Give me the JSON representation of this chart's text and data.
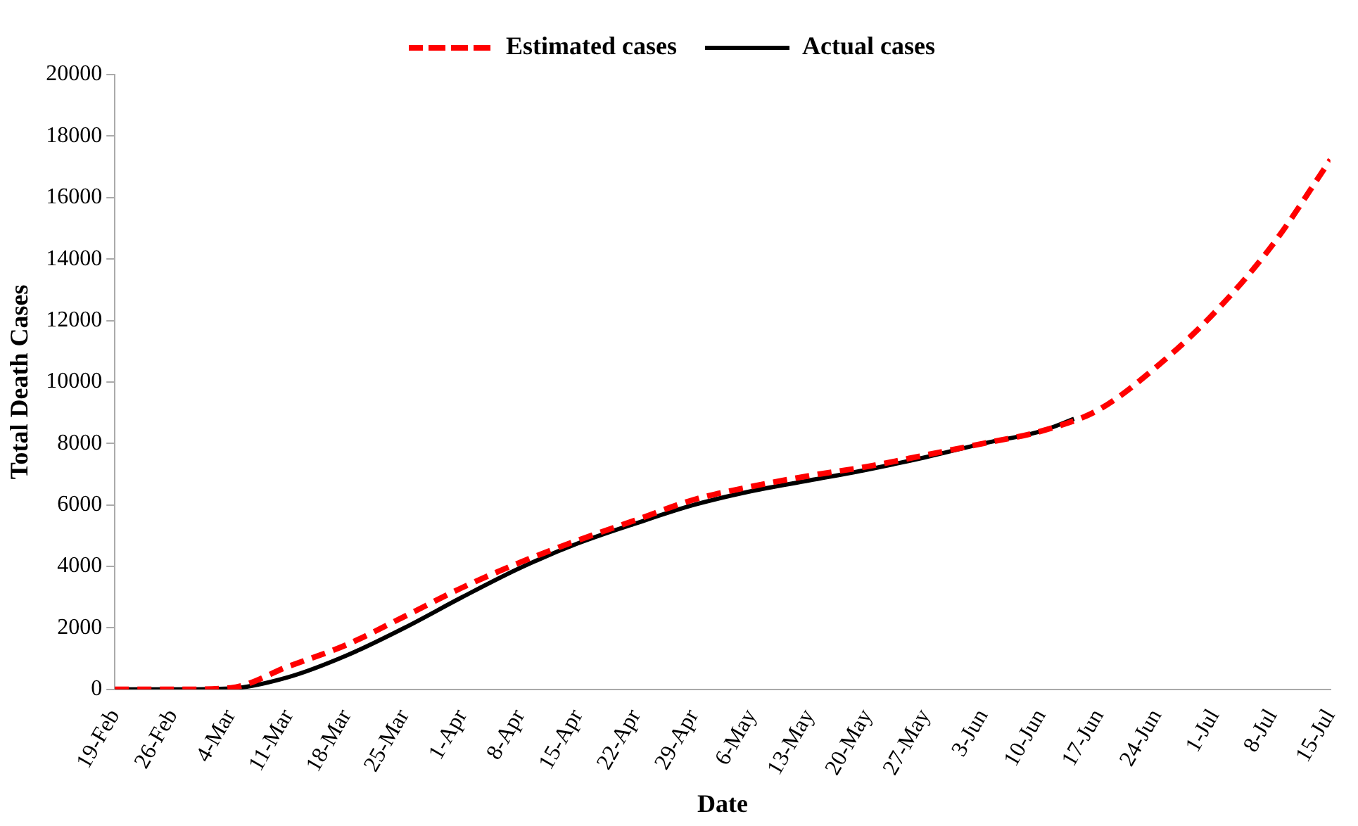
{
  "chart_data": {
    "type": "line",
    "xlabel": "Date",
    "ylabel": "Total Death Cases",
    "legend": "top",
    "marker": "none",
    "grid": false,
    "xlim": [
      "--02-19",
      "--07-15"
    ],
    "xticks": [
      {
        "value": "--02-19",
        "label": "19-Feb"
      },
      {
        "value": "--02-26",
        "label": "26-Feb"
      },
      {
        "value": "--03-04",
        "label": "4-Mar"
      },
      {
        "value": "--03-11",
        "label": "11-Mar"
      },
      {
        "value": "--03-18",
        "label": "18-Mar"
      },
      {
        "value": "--03-25",
        "label": "25-Mar"
      },
      {
        "value": "--04-01",
        "label": "1-Apr"
      },
      {
        "value": "--04-08",
        "label": "8-Apr"
      },
      {
        "value": "--04-15",
        "label": "15-Apr"
      },
      {
        "value": "--04-22",
        "label": "22-Apr"
      },
      {
        "value": "--04-29",
        "label": "29-Apr"
      },
      {
        "value": "--05-06",
        "label": "6-May"
      },
      {
        "value": "--05-13",
        "label": "13-May"
      },
      {
        "value": "--05-20",
        "label": "20-May"
      },
      {
        "value": "--05-27",
        "label": "27-May"
      },
      {
        "value": "--06-03",
        "label": "3-Jun"
      },
      {
        "value": "--06-10",
        "label": "10-Jun"
      },
      {
        "value": "--06-17",
        "label": "17-Jun"
      },
      {
        "value": "--06-24",
        "label": "24-Jun"
      },
      {
        "value": "--07-01",
        "label": "1-Jul"
      },
      {
        "value": "--07-08",
        "label": "8-Jul"
      },
      {
        "value": "--07-15",
        "label": "15-Jul"
      }
    ],
    "ylim": [
      0,
      20000
    ],
    "yticks": [
      0,
      2000,
      4000,
      6000,
      8000,
      10000,
      12000,
      14000,
      16000,
      18000,
      20000
    ],
    "series": [
      {
        "name": "Estimated cases",
        "color": "#ff0000",
        "line_style": "dashed",
        "x": [
          "--02-19",
          "--02-26",
          "--03-04",
          "--03-11",
          "--03-18",
          "--03-25",
          "--04-01",
          "--04-08",
          "--04-15",
          "--04-22",
          "--04-29",
          "--05-06",
          "--05-13",
          "--05-20",
          "--05-27",
          "--06-03",
          "--06-10",
          "--06-17",
          "--06-24",
          "--07-01",
          "--07-08",
          "--07-15"
        ],
        "values": [
          0,
          0,
          50,
          750,
          1450,
          2370,
          3310,
          4130,
          4850,
          5510,
          6170,
          6600,
          6950,
          7250,
          7620,
          8000,
          8400,
          9100,
          10500,
          12260,
          14460,
          17230
        ]
      },
      {
        "name": "Actual cases",
        "color": "#000000",
        "line_style": "solid",
        "x": [
          "--02-19",
          "--02-26",
          "--03-04",
          "--03-11",
          "--03-18",
          "--03-25",
          "--04-01",
          "--04-08",
          "--04-15",
          "--04-22",
          "--04-29",
          "--05-06",
          "--05-13",
          "--05-20",
          "--05-27",
          "--06-03",
          "--06-10",
          "--06-14"
        ],
        "values": [
          0,
          0,
          30,
          400,
          1100,
          2000,
          3000,
          3950,
          4750,
          5400,
          6000,
          6450,
          6800,
          7150,
          7550,
          8000,
          8400,
          8800
        ]
      }
    ]
  }
}
